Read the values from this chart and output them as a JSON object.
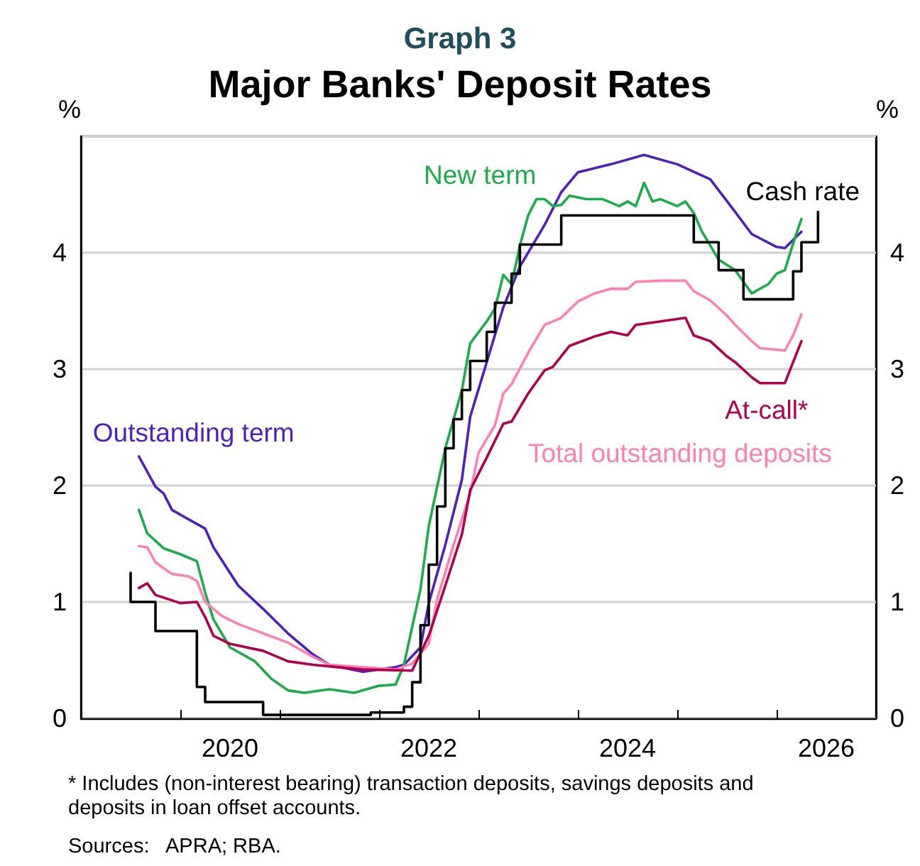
{
  "chart_data": {
    "type": "line",
    "title": "Graph 3",
    "subtitle": "Major Banks' Deposit Rates",
    "ylabel": "%",
    "y2label": "%",
    "xlim": [
      "2019-01",
      "2027-01"
    ],
    "xticks": [
      {
        "value": "2020-01",
        "label": null
      },
      {
        "value": "2021-01",
        "label": null
      },
      {
        "value": "2022-01",
        "label": null
      },
      {
        "value": "2023-01",
        "label": null
      },
      {
        "value": "2024-01",
        "label": null
      },
      {
        "value": "2025-01",
        "label": null
      },
      {
        "value": "2026-01",
        "label": null
      },
      {
        "value": "2020-07",
        "label": "2020"
      },
      {
        "value": "2022-07",
        "label": "2022"
      },
      {
        "value": "2024-07",
        "label": "2024"
      },
      {
        "value": "2026-07",
        "label": "2026"
      }
    ],
    "ylim": [
      0,
      5
    ],
    "yticks": [
      0,
      1,
      2,
      3,
      4
    ],
    "y2lim": [
      0,
      5
    ],
    "y2ticks": [
      0,
      1,
      2,
      3,
      4
    ],
    "grid": "y",
    "legend": false,
    "marker": "none",
    "line_style": "solid",
    "series": [
      {
        "name": "Outstanding term",
        "color": "#4f1fbf",
        "x": [
          "2019-08",
          "2019-10",
          "2019-11",
          "2019-12",
          "2020-02",
          "2020-04",
          "2020-05",
          "2020-08",
          "2020-11",
          "2021-02",
          "2021-05",
          "2021-07",
          "2021-11",
          "2022-03",
          "2022-04",
          "2022-06",
          "2022-07",
          "2022-09",
          "2022-11",
          "2022-12",
          "2023-02",
          "2023-04",
          "2023-06",
          "2023-09",
          "2023-11",
          "2024-01",
          "2024-05",
          "2024-09",
          "2025-01",
          "2025-05",
          "2025-08",
          "2025-10",
          "2026-01",
          "2026-02",
          "2026-04"
        ],
        "values": [
          2.25,
          1.99,
          1.93,
          1.79,
          1.71,
          1.63,
          1.47,
          1.14,
          0.94,
          0.73,
          0.55,
          0.46,
          0.4,
          0.44,
          0.46,
          0.61,
          0.99,
          1.49,
          2.05,
          2.59,
          3.06,
          3.53,
          3.88,
          4.24,
          4.52,
          4.69,
          4.76,
          4.84,
          4.76,
          4.63,
          4.35,
          4.16,
          4.05,
          4.04,
          4.18
        ]
      },
      {
        "name": "New term",
        "color": "#1aad4a",
        "x": [
          "2019-08",
          "2019-09",
          "2019-11",
          "2020-01",
          "2020-03",
          "2020-04",
          "2020-05",
          "2020-07",
          "2020-10",
          "2020-12",
          "2021-02",
          "2021-04",
          "2021-07",
          "2021-10",
          "2022-01",
          "2022-03",
          "2022-04",
          "2022-06",
          "2022-07",
          "2022-09",
          "2022-11",
          "2022-12",
          "2023-02",
          "2023-03",
          "2023-04",
          "2023-05",
          "2023-06",
          "2023-07",
          "2023-08",
          "2023-09",
          "2023-10",
          "2023-11",
          "2023-12",
          "2024-02",
          "2024-04",
          "2024-06",
          "2024-07",
          "2024-08",
          "2024-09",
          "2024-10",
          "2024-11",
          "2025-01",
          "2025-02",
          "2025-03",
          "2025-04",
          "2025-05",
          "2025-06",
          "2025-08",
          "2025-09",
          "2025-10",
          "2025-12",
          "2026-01",
          "2026-02",
          "2026-03",
          "2026-04"
        ],
        "values": [
          1.79,
          1.59,
          1.46,
          1.41,
          1.35,
          1.08,
          0.85,
          0.61,
          0.49,
          0.34,
          0.24,
          0.22,
          0.25,
          0.22,
          0.28,
          0.29,
          0.46,
          1.11,
          1.65,
          2.32,
          2.82,
          3.22,
          3.41,
          3.52,
          3.81,
          3.73,
          4.06,
          4.32,
          4.46,
          4.46,
          4.4,
          4.41,
          4.49,
          4.46,
          4.46,
          4.4,
          4.44,
          4.4,
          4.6,
          4.44,
          4.46,
          4.4,
          4.44,
          4.34,
          4.18,
          4.06,
          3.94,
          3.85,
          3.75,
          3.65,
          3.73,
          3.82,
          3.85,
          4.08,
          4.29
        ]
      },
      {
        "name": "Total outstanding deposits",
        "color": "#ff80b2",
        "x": [
          "2019-08",
          "2019-09",
          "2019-10",
          "2019-12",
          "2020-02",
          "2020-03",
          "2020-04",
          "2020-06",
          "2020-08",
          "2020-11",
          "2021-02",
          "2021-05",
          "2021-07",
          "2021-11",
          "2022-03",
          "2022-05",
          "2022-07",
          "2022-08",
          "2022-10",
          "2022-12",
          "2023-01",
          "2023-03",
          "2023-04",
          "2023-05",
          "2023-07",
          "2023-09",
          "2023-11",
          "2024-01",
          "2024-03",
          "2024-05",
          "2024-07",
          "2024-08",
          "2024-11",
          "2025-02",
          "2025-03",
          "2025-05",
          "2025-07",
          "2025-08",
          "2025-10",
          "2025-11",
          "2026-02",
          "2026-03",
          "2026-04"
        ],
        "values": [
          1.48,
          1.47,
          1.34,
          1.24,
          1.22,
          1.18,
          1.0,
          0.88,
          0.81,
          0.73,
          0.65,
          0.53,
          0.46,
          0.44,
          0.42,
          0.47,
          0.64,
          1.02,
          1.49,
          1.93,
          2.28,
          2.52,
          2.79,
          2.87,
          3.14,
          3.38,
          3.44,
          3.58,
          3.65,
          3.69,
          3.69,
          3.75,
          3.76,
          3.76,
          3.67,
          3.59,
          3.46,
          3.38,
          3.24,
          3.18,
          3.16,
          3.29,
          3.47
        ]
      },
      {
        "name": "At-call*",
        "color": "#b3004e",
        "x": [
          "2019-08",
          "2019-09",
          "2019-10",
          "2020-01",
          "2020-03",
          "2020-04",
          "2020-05",
          "2020-07",
          "2020-11",
          "2021-02",
          "2021-05",
          "2021-08",
          "2021-11",
          "2022-05",
          "2022-07",
          "2022-09",
          "2022-11",
          "2022-12",
          "2023-02",
          "2023-04",
          "2023-05",
          "2023-07",
          "2023-09",
          "2023-10",
          "2023-11",
          "2023-12",
          "2024-03",
          "2024-05",
          "2024-07",
          "2024-08",
          "2024-11",
          "2025-02",
          "2025-03",
          "2025-05",
          "2025-07",
          "2025-08",
          "2025-10",
          "2025-11",
          "2026-02",
          "2026-04"
        ],
        "values": [
          1.12,
          1.16,
          1.06,
          0.99,
          1.0,
          0.87,
          0.71,
          0.64,
          0.58,
          0.49,
          0.46,
          0.44,
          0.42,
          0.41,
          0.71,
          1.14,
          1.58,
          1.96,
          2.24,
          2.53,
          2.55,
          2.79,
          2.99,
          3.02,
          3.11,
          3.2,
          3.28,
          3.32,
          3.29,
          3.38,
          3.41,
          3.44,
          3.29,
          3.24,
          3.11,
          3.06,
          2.93,
          2.88,
          2.88,
          3.24
        ]
      },
      {
        "name": "Cash rate",
        "type": "step",
        "color": "#000000",
        "x": [
          "2019-07",
          "2019-07",
          "2019-10",
          "2020-03",
          "2020-04",
          "2020-11",
          "2021-12",
          "2022-04",
          "2022-05",
          "2022-06",
          "2022-07",
          "2022-08",
          "2022-09",
          "2022-10",
          "2022-11",
          "2022-12",
          "2023-02",
          "2023-03",
          "2023-05",
          "2023-06",
          "2023-11",
          "2025-03",
          "2025-06",
          "2025-09",
          "2026-03",
          "2026-04",
          "2026-06"
        ],
        "values": [
          1.25,
          1.0,
          0.75,
          0.27,
          0.14,
          0.03,
          0.05,
          0.1,
          0.31,
          0.8,
          1.32,
          1.82,
          2.32,
          2.57,
          2.82,
          3.07,
          3.32,
          3.57,
          3.82,
          4.07,
          4.32,
          4.09,
          3.85,
          3.6,
          3.84,
          4.09,
          4.35
        ]
      }
    ],
    "annotations": [
      "* Includes (non-interest bearing) transaction deposits, savings deposits and deposits in loan offset accounts.",
      "Sources:   APRA; RBA."
    ]
  }
}
